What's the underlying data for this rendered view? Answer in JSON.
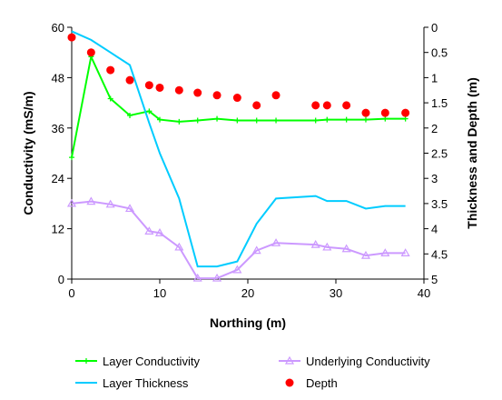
{
  "chart_data": {
    "type": "line",
    "title": "",
    "xlabel": "Northing (m)",
    "ylabel": "Conductivity (mS/m)",
    "y2label": "Thickness and Depth (m)",
    "xlim": [
      0,
      40
    ],
    "ylim": [
      0,
      60
    ],
    "y2lim": [
      0,
      5
    ],
    "y2_reversed": true,
    "x_ticks": [
      0,
      10,
      20,
      30,
      40
    ],
    "y_ticks": [
      0,
      12,
      24,
      36,
      48,
      60
    ],
    "y2_ticks": [
      0,
      0.5,
      1,
      1.5,
      2,
      2.5,
      3,
      3.5,
      4,
      4.5,
      5
    ],
    "grid": false,
    "legend_position": "bottom",
    "series": [
      {
        "name": "Layer Conductivity",
        "axis": "left",
        "color": "#00ff00",
        "marker": "plus",
        "x": [
          0,
          2.2,
          4.4,
          6.6,
          8.8,
          10,
          12.2,
          14.3,
          16.5,
          18.8,
          21,
          23.2,
          27.7,
          29,
          31.2,
          33.4,
          35.6,
          37.9
        ],
        "y": [
          29,
          53,
          43,
          39,
          40,
          38,
          37.5,
          37.8,
          38.2,
          37.8,
          37.8,
          37.8,
          37.8,
          38,
          38,
          38,
          38.2,
          38.2
        ]
      },
      {
        "name": "Underlying Conductivity",
        "axis": "left",
        "color": "#cc99ff",
        "marker": "triangle",
        "x": [
          0,
          2.2,
          4.4,
          6.6,
          8.8,
          10,
          12.2,
          14.3,
          16.5,
          18.8,
          21,
          23.2,
          27.7,
          29,
          31.2,
          33.4,
          35.6,
          37.9
        ],
        "y": [
          18,
          18.5,
          17.8,
          16.8,
          11.4,
          11,
          7.6,
          0.2,
          0.2,
          2.2,
          6.8,
          8.6,
          8.2,
          7.6,
          7.2,
          5.6,
          6.2,
          6.2
        ]
      },
      {
        "name": "Layer Thickness",
        "axis": "right",
        "color": "#00ccff",
        "marker": "none",
        "x": [
          0,
          2.2,
          4.4,
          6.6,
          8.8,
          10,
          12.2,
          14.3,
          16.5,
          18.8,
          21,
          23.2,
          27.7,
          29,
          31.2,
          33.4,
          35.6,
          37.9
        ],
        "y": [
          0.08,
          0.25,
          0.5,
          0.75,
          1.9,
          2.5,
          3.4,
          4.75,
          4.75,
          4.65,
          3.9,
          3.4,
          3.35,
          3.45,
          3.45,
          3.6,
          3.55,
          3.55
        ]
      },
      {
        "name": "Depth",
        "axis": "right",
        "color": "#ff0000",
        "marker": "circle",
        "x": [
          0,
          2.2,
          4.4,
          6.6,
          8.8,
          10,
          12.2,
          14.3,
          16.5,
          18.8,
          21,
          23.2,
          27.7,
          29,
          31.2,
          33.4,
          35.6,
          37.9
        ],
        "y": [
          0.2,
          0.5,
          0.85,
          1.05,
          1.15,
          1.2,
          1.25,
          1.3,
          1.35,
          1.4,
          1.55,
          1.35,
          1.55,
          1.55,
          1.55,
          1.7,
          1.7,
          1.7
        ]
      }
    ],
    "legend": [
      {
        "series": 0,
        "label": "Layer Conductivity"
      },
      {
        "series": 1,
        "label": "Underlying Conductivity"
      },
      {
        "series": 2,
        "label": "Layer Thickness"
      },
      {
        "series": 3,
        "label": "Depth"
      }
    ]
  }
}
